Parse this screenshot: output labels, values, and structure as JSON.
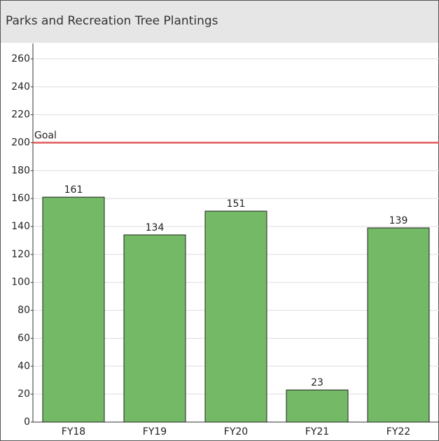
{
  "chart_data": {
    "type": "bar",
    "title": "Parks and Recreation Tree Plantings",
    "categories": [
      "FY18",
      "FY19",
      "FY20",
      "FY21",
      "FY22"
    ],
    "values": [
      161,
      134,
      151,
      23,
      139
    ],
    "color": "#74b966",
    "ylim": [
      0,
      271
    ],
    "yticks": [
      0,
      20,
      40,
      60,
      80,
      100,
      120,
      140,
      160,
      180,
      200,
      220,
      240,
      260
    ],
    "grid": true,
    "reference_line": {
      "label": "Goal",
      "value": 200,
      "color": "#e05a5a"
    }
  }
}
